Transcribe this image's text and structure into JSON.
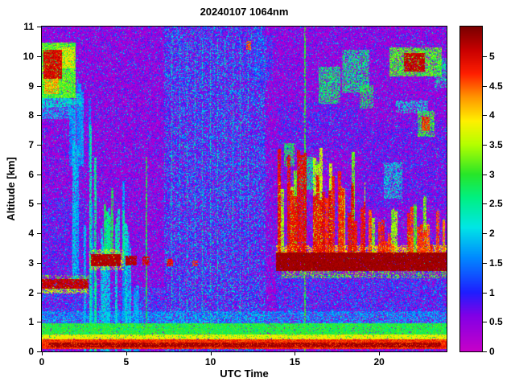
{
  "chart_data": {
    "type": "heatmap",
    "title": "20240107 1064nm",
    "xlabel": "UTC Time",
    "ylabel": "Altitude [km]",
    "xlim": [
      0,
      24
    ],
    "ylim": [
      0,
      11
    ],
    "xticks": [
      0,
      5,
      10,
      15,
      20
    ],
    "yticks": [
      0,
      1,
      2,
      3,
      4,
      5,
      6,
      7,
      8,
      9,
      10,
      11
    ],
    "grid": false,
    "colorbar": {
      "position": "right",
      "vmin": 0,
      "vmax": 5.5,
      "ticks": [
        0,
        0.5,
        1,
        1.5,
        2,
        2.5,
        3,
        3.5,
        4,
        4.5,
        5
      ],
      "stops": [
        [
          0.0,
          "#C800C8"
        ],
        [
          0.6,
          "#8200E6"
        ],
        [
          1.0,
          "#1E1EFF"
        ],
        [
          1.6,
          "#008CFF"
        ],
        [
          2.1,
          "#00E6E6"
        ],
        [
          2.6,
          "#00F082"
        ],
        [
          3.0,
          "#28E628"
        ],
        [
          3.5,
          "#B4FF00"
        ],
        [
          3.9,
          "#FFF000"
        ],
        [
          4.3,
          "#FF9600"
        ],
        [
          4.7,
          "#FF1E00"
        ],
        [
          5.1,
          "#C80000"
        ],
        [
          5.5,
          "#780000"
        ]
      ]
    },
    "noise": {
      "base": {
        "blue": 0.22,
        "cyan": 0.05,
        "green": 0.003
      },
      "bands": [
        {
          "x": [
            7.25,
            13.25
          ],
          "blue": 0.4,
          "cyan": 0.2,
          "green": 0.012
        }
      ]
    },
    "features": [
      {
        "t": "rect",
        "x": [
          0,
          24
        ],
        "y": [
          0.9,
          1.35
        ],
        "v": 1.7,
        "vr": 0.8,
        "p": 0.6
      },
      {
        "t": "rect",
        "x": [
          0,
          24
        ],
        "y": [
          0.45,
          0.95
        ],
        "v": 2.9,
        "vr": 0.7,
        "p": 0.95
      },
      {
        "t": "rect",
        "x": [
          0,
          24
        ],
        "y": [
          0.36,
          0.56
        ],
        "v": 3.8,
        "vr": 0.5,
        "p": 0.85
      },
      {
        "t": "rect",
        "x": [
          0,
          24
        ],
        "y": [
          0.12,
          0.42
        ],
        "v": 4.7,
        "vr": 0.6,
        "p": 1
      },
      {
        "t": "rect",
        "x": [
          0.4,
          23.6
        ],
        "y": [
          0.17,
          0.31
        ],
        "v": 5.3,
        "vr": 0.3,
        "p": 0.8
      },
      {
        "t": "rect",
        "x": [
          0,
          2.7
        ],
        "y": [
          2.15,
          2.45
        ],
        "v": 5.1,
        "vr": 0.4,
        "p": 0.9
      },
      {
        "t": "rect",
        "x": [
          0,
          2.7
        ],
        "y": [
          2.0,
          2.18
        ],
        "v": 3.6,
        "vr": 0.8,
        "p": 0.5
      },
      {
        "t": "rect",
        "x": [
          0,
          2.7
        ],
        "y": [
          2.42,
          2.6
        ],
        "v": 3.2,
        "vr": 0.8,
        "p": 0.35
      },
      {
        "t": "rect",
        "x": [
          2.9,
          4.65
        ],
        "y": [
          2.9,
          3.3
        ],
        "v": 5.2,
        "vr": 0.3,
        "p": 0.95
      },
      {
        "t": "rect",
        "x": [
          2.8,
          4.8
        ],
        "y": [
          2.78,
          3.45
        ],
        "v": 3.6,
        "vr": 0.9,
        "p": 0.4
      },
      {
        "t": "rect",
        "x": [
          4.95,
          5.6
        ],
        "y": [
          2.95,
          3.25
        ],
        "v": 5.2,
        "vr": 0.3,
        "p": 0.9
      },
      {
        "t": "rect",
        "x": [
          5.95,
          6.35
        ],
        "y": [
          2.95,
          3.2
        ],
        "v": 5.0,
        "vr": 0.4,
        "p": 0.85
      },
      {
        "t": "rect",
        "x": [
          7.4,
          7.75
        ],
        "y": [
          2.92,
          3.12
        ],
        "v": 4.9,
        "vr": 0.4,
        "p": 0.8
      },
      {
        "t": "rect",
        "x": [
          8.9,
          9.2
        ],
        "y": [
          2.9,
          3.08
        ],
        "v": 4.6,
        "vr": 0.5,
        "p": 0.7
      },
      {
        "t": "streaks",
        "x": [
          2.5,
          5.3
        ],
        "y": [
          0,
          5.8
        ],
        "v": 1.9,
        "vr": 1.0,
        "p": 0.55,
        "tv": 2.5,
        "w": 3
      },
      {
        "t": "streaks",
        "x": [
          2.65,
          3.25
        ],
        "y": [
          0,
          8.0
        ],
        "v": 2.4,
        "vr": 0.9,
        "p": 0.6,
        "tv": 2.0,
        "w": 3
      },
      {
        "t": "streaks",
        "x": [
          3.4,
          4.5
        ],
        "y": [
          3.2,
          5.6
        ],
        "v": 2.6,
        "vr": 0.8,
        "p": 0.6,
        "tv": 1.2,
        "w": 3
      },
      {
        "t": "streaks",
        "x": [
          4.5,
          5.1
        ],
        "y": [
          3.1,
          5.0
        ],
        "v": 2.3,
        "vr": 0.8,
        "p": 0.5,
        "tv": 1.0,
        "w": 3
      },
      {
        "t": "streaks",
        "x": [
          1.6,
          2.9
        ],
        "y": [
          6.3,
          9.3
        ],
        "v": 1.7,
        "vr": 0.8,
        "p": 0.45,
        "tv": 1.5,
        "w": 3
      },
      {
        "t": "streaks",
        "x": [
          1.8,
          2.2
        ],
        "y": [
          2.3,
          8.8
        ],
        "v": 1.8,
        "vr": 0.8,
        "p": 0.5,
        "tv": 2.5,
        "w": 2
      },
      {
        "t": "streaks",
        "x": [
          5.3,
          5.75
        ],
        "y": [
          0,
          2.6
        ],
        "v": 1.8,
        "vr": 0.8,
        "p": 0.5,
        "tv": 1.0,
        "w": 3
      },
      {
        "t": "vlines",
        "xs": [
          6.17
        ],
        "y": [
          0,
          6.6
        ],
        "v": 2.9,
        "vr": 0.5,
        "w": 2,
        "p": 0.7
      },
      {
        "t": "rect",
        "x": [
          0,
          7.2
        ],
        "y": [
          1.1,
          2.15
        ],
        "v": 1.4,
        "vr": 0.9,
        "p": 0.35
      },
      {
        "t": "rect",
        "x": [
          0,
          2.6
        ],
        "y": [
          2.6,
          5.2
        ],
        "v": 1.2,
        "vr": 0.9,
        "p": 0.3
      },
      {
        "t": "rect",
        "x": [
          0,
          1.7
        ],
        "y": [
          7.9,
          8.7
        ],
        "v": 1.9,
        "vr": 0.8,
        "p": 0.5
      },
      {
        "t": "rect",
        "x": [
          0,
          1.95
        ],
        "y": [
          8.6,
          10.45
        ],
        "v": 3.1,
        "vr": 1.0,
        "p": 0.95
      },
      {
        "t": "rect",
        "x": [
          0.1,
          1.15
        ],
        "y": [
          9.25,
          10.2
        ],
        "v": 5.0,
        "vr": 0.5,
        "p": 0.9
      },
      {
        "t": "rect",
        "x": [
          0.15,
          0.95
        ],
        "y": [
          8.75,
          9.3
        ],
        "v": 4.2,
        "vr": 0.7,
        "p": 0.7
      },
      {
        "t": "rect",
        "x": [
          1.0,
          1.9
        ],
        "y": [
          9.6,
          10.3
        ],
        "v": 3.9,
        "vr": 0.8,
        "p": 0.7
      },
      {
        "t": "rect",
        "x": [
          0,
          2.3
        ],
        "y": [
          8.3,
          8.75
        ],
        "v": 2.2,
        "vr": 0.8,
        "p": 0.55
      },
      {
        "t": "rect",
        "x": [
          13.9,
          24
        ],
        "y": [
          2.75,
          3.35
        ],
        "v": 5.3,
        "vr": 0.25,
        "p": 0.97
      },
      {
        "t": "rect",
        "x": [
          13.9,
          24
        ],
        "y": [
          3.3,
          3.6
        ],
        "v": 4.0,
        "vr": 0.7,
        "p": 0.5
      },
      {
        "t": "rect",
        "x": [
          14.2,
          24
        ],
        "y": [
          2.5,
          2.8
        ],
        "v": 3.2,
        "vr": 0.9,
        "p": 0.35
      },
      {
        "t": "streaks",
        "x": [
          14.0,
          16.6
        ],
        "y": [
          3.3,
          6.9
        ],
        "v": 4.9,
        "vr": 0.6,
        "p": 0.8,
        "tv": 1.8,
        "w": 4
      },
      {
        "t": "streaks",
        "x": [
          16.6,
          19.2
        ],
        "y": [
          3.3,
          6.2
        ],
        "v": 4.8,
        "vr": 0.6,
        "p": 0.75,
        "tv": 1.8,
        "w": 4
      },
      {
        "t": "streaks",
        "x": [
          14.0,
          19.2
        ],
        "y": [
          3.3,
          7.2
        ],
        "v": 3.4,
        "vr": 0.8,
        "p": 0.5,
        "tv": 2.2,
        "w": 4
      },
      {
        "t": "streaks",
        "x": [
          19.2,
          23.9
        ],
        "y": [
          3.3,
          4.9
        ],
        "v": 4.6,
        "vr": 0.7,
        "p": 0.6,
        "tv": 1.3,
        "w": 4
      },
      {
        "t": "streaks",
        "x": [
          19.2,
          23.9
        ],
        "y": [
          3.3,
          5.3
        ],
        "v": 3.2,
        "vr": 0.9,
        "p": 0.4,
        "tv": 1.5,
        "w": 4
      },
      {
        "t": "rect",
        "x": [
          15.25,
          16.15
        ],
        "y": [
          5.5,
          6.6
        ],
        "v": 2.5,
        "vr": 0.8,
        "p": 0.65
      },
      {
        "t": "rect",
        "x": [
          14.35,
          14.95
        ],
        "y": [
          6.3,
          7.05
        ],
        "v": 2.8,
        "vr": 0.8,
        "p": 0.6
      },
      {
        "t": "rect",
        "x": [
          20.3,
          21.35
        ],
        "y": [
          5.2,
          6.4
        ],
        "v": 2.2,
        "vr": 0.8,
        "p": 0.5
      },
      {
        "t": "rect",
        "x": [
          22.3,
          23.25
        ],
        "y": [
          7.3,
          8.15
        ],
        "v": 3.0,
        "vr": 0.9,
        "p": 0.65
      },
      {
        "t": "rect",
        "x": [
          22.5,
          22.95
        ],
        "y": [
          7.5,
          7.95
        ],
        "v": 4.7,
        "vr": 0.5,
        "p": 0.8
      },
      {
        "t": "rect",
        "x": [
          16.4,
          17.65
        ],
        "y": [
          8.4,
          9.65
        ],
        "v": 2.7,
        "vr": 0.9,
        "p": 0.65
      },
      {
        "t": "rect",
        "x": [
          17.8,
          19.35
        ],
        "y": [
          8.8,
          10.2
        ],
        "v": 2.6,
        "vr": 0.9,
        "p": 0.55
      },
      {
        "t": "rect",
        "x": [
          18.85,
          19.6
        ],
        "y": [
          8.25,
          9.0
        ],
        "v": 2.8,
        "vr": 0.8,
        "p": 0.5
      },
      {
        "t": "rect",
        "x": [
          20.6,
          23.65
        ],
        "y": [
          9.35,
          10.3
        ],
        "v": 3.1,
        "vr": 0.9,
        "p": 0.75
      },
      {
        "t": "rect",
        "x": [
          21.45,
          22.65
        ],
        "y": [
          9.5,
          10.1
        ],
        "v": 5.1,
        "vr": 0.4,
        "p": 0.85
      },
      {
        "t": "rect",
        "x": [
          21.0,
          22.85
        ],
        "y": [
          8.1,
          8.5
        ],
        "v": 2.2,
        "vr": 0.7,
        "p": 0.45
      },
      {
        "t": "rect",
        "x": [
          23.3,
          24
        ],
        "y": [
          8.95,
          9.95
        ],
        "v": 2.4,
        "vr": 0.8,
        "p": 0.45
      },
      {
        "t": "rect",
        "x": [
          12.6,
          13.65
        ],
        "y": [
          9.2,
          10.7
        ],
        "v": 1.3,
        "vr": 0.9,
        "p": 0.4
      },
      {
        "t": "rect",
        "x": [
          12.1,
          12.35
        ],
        "y": [
          10.25,
          10.5
        ],
        "v": 4.5,
        "vr": 0.6,
        "p": 0.7
      },
      {
        "t": "rect",
        "x": [
          13.9,
          24
        ],
        "y": [
          1.3,
          2.6
        ],
        "v": 1.3,
        "vr": 1.0,
        "p": 0.4
      },
      {
        "t": "rect",
        "x": [
          19.0,
          24
        ],
        "y": [
          4.9,
          7.8
        ],
        "v": 1.0,
        "vr": 0.9,
        "p": 0.25
      },
      {
        "t": "rect",
        "x": [
          14.0,
          19.2
        ],
        "y": [
          6.9,
          8.4
        ],
        "v": 1.1,
        "vr": 0.9,
        "p": 0.25
      },
      {
        "t": "vlines",
        "xs": [
          15.55
        ],
        "y": [
          0,
          11
        ],
        "v": 3.0,
        "vr": 0.5,
        "w": 2,
        "p": 0.75
      },
      {
        "t": "vlines",
        "xs": [
          7.7,
          8.15,
          8.6,
          9.05,
          9.5,
          9.95,
          10.4,
          10.85,
          11.3,
          11.75,
          12.2
        ],
        "y": [
          0,
          10.6
        ],
        "v": 2.3,
        "vr": 0.7,
        "w": 1,
        "p": 0.45
      }
    ]
  }
}
